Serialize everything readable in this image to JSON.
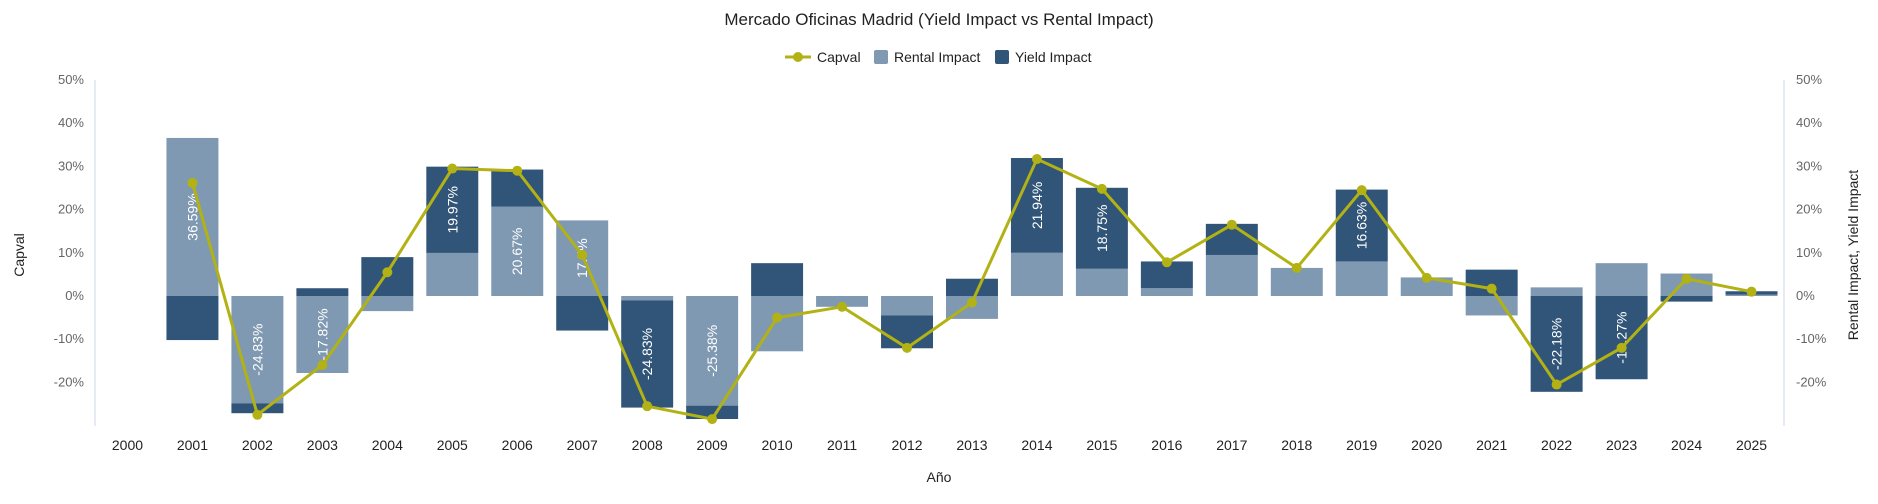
{
  "chart_data": {
    "type": "bar",
    "title": "Mercado Oficinas Madrid (Yield Impact vs Rental Impact)",
    "xlabel": "Año",
    "ylabel_left": "Capval",
    "ylabel_right": "Rental Impact, Yield Impact",
    "yticks": [
      "50%",
      "40%",
      "30%",
      "20%",
      "10%",
      "0%",
      "-10%",
      "-20%"
    ],
    "ylim": [
      -30,
      52
    ],
    "stacked": true,
    "legend_position": "top-center",
    "categories": [
      "2000",
      "2001",
      "2002",
      "2003",
      "2004",
      "2005",
      "2006",
      "2007",
      "2008",
      "2009",
      "2010",
      "2011",
      "2012",
      "2013",
      "2014",
      "2015",
      "2016",
      "2017",
      "2018",
      "2019",
      "2020",
      "2021",
      "2022",
      "2023",
      "2024",
      "2025"
    ],
    "series": [
      {
        "name": "Capval",
        "type": "line",
        "color": "#b2b214",
        "values": [
          null,
          26.2,
          -27.5,
          -16.0,
          5.5,
          29.5,
          29.0,
          9.5,
          -25.5,
          -28.5,
          -5.0,
          -2.5,
          -12.0,
          -1.5,
          31.7,
          24.8,
          7.8,
          16.5,
          6.5,
          24.5,
          4.2,
          1.7,
          -20.5,
          -12.0,
          4.0,
          1.0
        ]
      },
      {
        "name": "Rental Impact",
        "type": "bar",
        "color": "#7f99b2",
        "values": [
          null,
          36.59,
          -24.83,
          -17.82,
          -3.5,
          9.97,
          20.67,
          17.5,
          -1.0,
          -25.38,
          -12.8,
          -2.5,
          -4.5,
          -5.3,
          10.0,
          6.3,
          1.8,
          9.5,
          6.5,
          8.0,
          4.3,
          -4.5,
          2.0,
          7.6,
          5.2,
          0.3
        ]
      },
      {
        "name": "Yield Impact",
        "type": "bar",
        "color": "#315578",
        "values": [
          null,
          -10.2,
          -2.3,
          1.8,
          9.0,
          19.97,
          8.6,
          -8.0,
          -24.83,
          -3.1,
          7.6,
          0.0,
          -7.6,
          4.0,
          21.94,
          18.75,
          6.2,
          7.2,
          0.0,
          16.63,
          0.0,
          6.1,
          -22.18,
          -19.27,
          -1.3,
          0.8
        ]
      }
    ],
    "data_labels": [
      {
        "category": "2001",
        "text": "36.59%"
      },
      {
        "category": "2002",
        "text": "-24.83%"
      },
      {
        "category": "2003",
        "text": "-17.82%"
      },
      {
        "category": "2005",
        "text": "19.97%"
      },
      {
        "category": "2006",
        "text": "20.67%"
      },
      {
        "category": "2007",
        "text": "17.5%"
      },
      {
        "category": "2008",
        "text": "-24.83%"
      },
      {
        "category": "2009",
        "text": "-25.38%"
      },
      {
        "category": "2014",
        "text": "21.94%"
      },
      {
        "category": "2015",
        "text": "18.75%"
      },
      {
        "category": "2019",
        "text": "16.63%"
      },
      {
        "category": "2022",
        "text": "-22.18%"
      },
      {
        "category": "2023",
        "text": "-19.27%"
      }
    ]
  }
}
